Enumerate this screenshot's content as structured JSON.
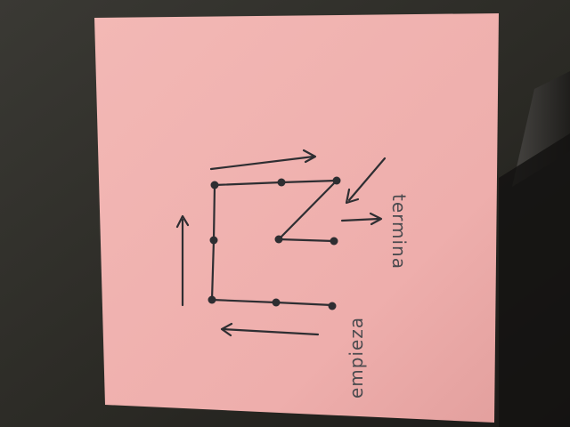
{
  "photo": {
    "background_color": "#2b2a26",
    "note_color": "#f0b2b0",
    "ink_color": "#2e2e32",
    "labels": {
      "start": "empieza",
      "end": "termina"
    }
  }
}
